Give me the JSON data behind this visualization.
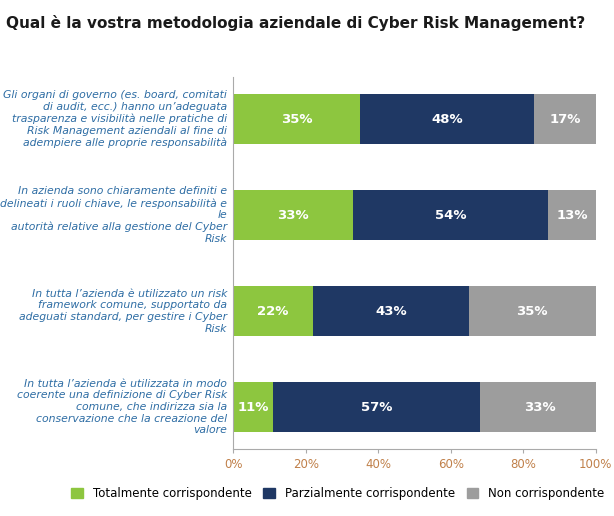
{
  "title": "Qual è la vostra metodologia aziendale di Cyber Risk Management?",
  "categories": [
    "Gli organi di governo (es. board, comitati\ndi audit, ecc.) hanno un’adeguata\ntrasparenza e visibilità nelle pratiche di\nRisk Management aziendali al fine di\nadempiere alle proprie responsabilità",
    "In azienda sono chiaramente definiti e\ndelineati i ruoli chiave, le responsabilità e le\nautorità relative alla gestione del Cyber Risk",
    "In tutta l’azienda è utilizzato un risk\nframework comune, supportato da\nadeguati standard, per gestire i Cyber Risk",
    "In tutta l’azienda è utilizzata in modo\ncoerente una definizione di Cyber Risk\ncomune, che indirizza sia la\nconservazione che la creazione del valore"
  ],
  "series": [
    {
      "label": "Totalmente corrispondente",
      "color": "#8DC63F",
      "values": [
        35,
        33,
        22,
        11
      ]
    },
    {
      "label": "Parzialmente corrispondente",
      "color": "#1F3864",
      "values": [
        48,
        54,
        43,
        57
      ]
    },
    {
      "label": "Non corrispondente",
      "color": "#9D9D9D",
      "values": [
        17,
        13,
        35,
        33
      ]
    }
  ],
  "xlim": [
    0,
    100
  ],
  "xticks": [
    0,
    20,
    40,
    60,
    80,
    100
  ],
  "xticklabels": [
    "0%",
    "20%",
    "40%",
    "60%",
    "80%",
    "100%"
  ],
  "background_color": "#FFFFFF",
  "title_color": "#1A1A1A",
  "label_color": "#2E6DA4",
  "tick_color": "#C0804A",
  "bar_height": 0.52,
  "bar_label_fontsize": 9.5,
  "title_fontsize": 11,
  "axis_fontsize": 8.5,
  "legend_fontsize": 8.5,
  "category_fontsize": 7.8
}
